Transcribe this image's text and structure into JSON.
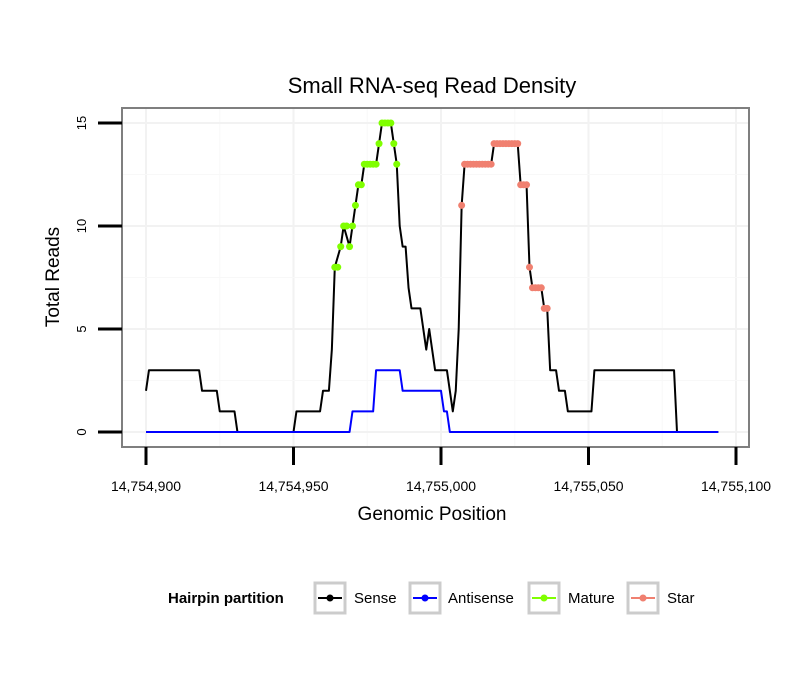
{
  "chart_data": {
    "type": "line",
    "title": "Small RNA-seq Read Density",
    "xlabel": "Genomic Position",
    "ylabel": "Total Reads",
    "xlim": [
      14754900,
      14755100
    ],
    "ylim": [
      0,
      15
    ],
    "x_ticks": [
      14754900,
      14754950,
      14755000,
      14755050,
      14755100
    ],
    "x_tick_labels": [
      "14,754,900",
      "14,754,950",
      "14,755,000",
      "14,755,050",
      "14,755,100"
    ],
    "y_ticks": [
      0,
      5,
      10,
      15
    ],
    "y_tick_labels": [
      "0",
      "5",
      "10",
      "15"
    ],
    "grid": true,
    "legend": {
      "title": "Hairpin partition",
      "placement": "bottom",
      "entries": [
        "Sense",
        "Antisense",
        "Mature",
        "Star"
      ]
    },
    "series": [
      {
        "name": "Sense",
        "color": "#000000",
        "style": "line",
        "points": [
          [
            14754900,
            2
          ],
          [
            14754901,
            3
          ],
          [
            14754918,
            3
          ],
          [
            14754919,
            2
          ],
          [
            14754924,
            2
          ],
          [
            14754925,
            1
          ],
          [
            14754930,
            1
          ],
          [
            14754931,
            0
          ],
          [
            14754950,
            0
          ],
          [
            14754951,
            1
          ],
          [
            14754959,
            1
          ],
          [
            14754960,
            2
          ],
          [
            14754962,
            2
          ],
          [
            14754963,
            4
          ],
          [
            14754964,
            8
          ],
          [
            14754966,
            9
          ],
          [
            14754967,
            10
          ],
          [
            14754969,
            9
          ],
          [
            14754970,
            10
          ],
          [
            14754971,
            11
          ],
          [
            14754972,
            12
          ],
          [
            14754973,
            12
          ],
          [
            14754974,
            13
          ],
          [
            14754978,
            13
          ],
          [
            14754979,
            14
          ],
          [
            14754980,
            15
          ],
          [
            14754983,
            15
          ],
          [
            14754984,
            14
          ],
          [
            14754985,
            13
          ],
          [
            14754986,
            10
          ],
          [
            14754987,
            9
          ],
          [
            14754988,
            9
          ],
          [
            14754989,
            7
          ],
          [
            14754990,
            6
          ],
          [
            14754993,
            6
          ],
          [
            14754994,
            5
          ],
          [
            14754995,
            4
          ],
          [
            14754996,
            5
          ],
          [
            14754997,
            4
          ],
          [
            14754998,
            3
          ],
          [
            14755002,
            3
          ],
          [
            14755003,
            2
          ],
          [
            14755004,
            1
          ],
          [
            14755005,
            2
          ],
          [
            14755006,
            5
          ],
          [
            14755007,
            11
          ],
          [
            14755008,
            13
          ],
          [
            14755017,
            13
          ],
          [
            14755018,
            14
          ],
          [
            14755026,
            14
          ],
          [
            14755027,
            12
          ],
          [
            14755029,
            12
          ],
          [
            14755030,
            8
          ],
          [
            14755031,
            7
          ],
          [
            14755034,
            7
          ],
          [
            14755035,
            6
          ],
          [
            14755036,
            6
          ],
          [
            14755037,
            3
          ],
          [
            14755039,
            3
          ],
          [
            14755040,
            2
          ],
          [
            14755042,
            2
          ],
          [
            14755043,
            1
          ],
          [
            14755051,
            1
          ],
          [
            14755052,
            3
          ],
          [
            14755079,
            3
          ],
          [
            14755080,
            0
          ],
          [
            14755094,
            0
          ]
        ]
      },
      {
        "name": "Antisense",
        "color": "#0000ff",
        "style": "line",
        "points": [
          [
            14754900,
            0
          ],
          [
            14754969,
            0
          ],
          [
            14754970,
            1
          ],
          [
            14754977,
            1
          ],
          [
            14754978,
            3
          ],
          [
            14754986,
            3
          ],
          [
            14754987,
            2
          ],
          [
            14755000,
            2
          ],
          [
            14755001,
            1
          ],
          [
            14755002,
            1
          ],
          [
            14755003,
            0
          ],
          [
            14755094,
            0
          ]
        ]
      },
      {
        "name": "Mature",
        "color": "#80ff00",
        "style": "points",
        "points": [
          [
            14754964,
            8
          ],
          [
            14754965,
            8
          ],
          [
            14754966,
            9
          ],
          [
            14754967,
            10
          ],
          [
            14754968,
            10
          ],
          [
            14754969,
            9
          ],
          [
            14754970,
            10
          ],
          [
            14754971,
            11
          ],
          [
            14754972,
            12
          ],
          [
            14754973,
            12
          ],
          [
            14754974,
            13
          ],
          [
            14754975,
            13
          ],
          [
            14754976,
            13
          ],
          [
            14754977,
            13
          ],
          [
            14754978,
            13
          ],
          [
            14754979,
            14
          ],
          [
            14754980,
            15
          ],
          [
            14754981,
            15
          ],
          [
            14754982,
            15
          ],
          [
            14754983,
            15
          ],
          [
            14754984,
            14
          ],
          [
            14754985,
            13
          ]
        ]
      },
      {
        "name": "Star",
        "color": "#f08070",
        "style": "points",
        "points": [
          [
            14755007,
            11
          ],
          [
            14755008,
            13
          ],
          [
            14755009,
            13
          ],
          [
            14755010,
            13
          ],
          [
            14755011,
            13
          ],
          [
            14755012,
            13
          ],
          [
            14755013,
            13
          ],
          [
            14755014,
            13
          ],
          [
            14755015,
            13
          ],
          [
            14755016,
            13
          ],
          [
            14755017,
            13
          ],
          [
            14755018,
            14
          ],
          [
            14755019,
            14
          ],
          [
            14755020,
            14
          ],
          [
            14755021,
            14
          ],
          [
            14755022,
            14
          ],
          [
            14755023,
            14
          ],
          [
            14755024,
            14
          ],
          [
            14755025,
            14
          ],
          [
            14755026,
            14
          ],
          [
            14755027,
            12
          ],
          [
            14755028,
            12
          ],
          [
            14755029,
            12
          ],
          [
            14755030,
            8
          ],
          [
            14755031,
            7
          ],
          [
            14755032,
            7
          ],
          [
            14755033,
            7
          ],
          [
            14755034,
            7
          ],
          [
            14755035,
            6
          ],
          [
            14755036,
            6
          ]
        ]
      }
    ]
  }
}
